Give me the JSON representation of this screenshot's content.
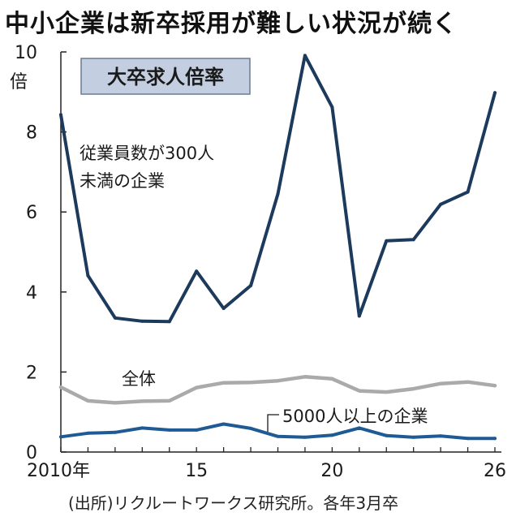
{
  "title": "中小企業は新卒採用が難しい状況が続く",
  "source": "(出所)リクルートワークス研究所。各年3月卒",
  "chart_data": {
    "type": "line",
    "title": "大卒求人倍率",
    "y_unit": "倍",
    "x": [
      2010,
      2011,
      2012,
      2013,
      2014,
      2015,
      2016,
      2017,
      2018,
      2019,
      2020,
      2021,
      2022,
      2023,
      2024,
      2025,
      2026
    ],
    "xlim": [
      2010,
      2026
    ],
    "ylim": [
      0,
      10
    ],
    "x_ticks": [
      2010,
      2015,
      2020,
      2026
    ],
    "x_tick_labels": [
      "2010年",
      "15",
      "20",
      "26"
    ],
    "y_ticks": [
      0,
      2,
      4,
      6,
      8,
      10
    ],
    "y_tick_labels": [
      "0",
      "2",
      "4",
      "6",
      "8",
      "10"
    ],
    "grid": false,
    "series": [
      {
        "name": "従業員数が300人未満の企業",
        "label_lines": [
          "従業員数が300人",
          "未満の企業"
        ],
        "color": "#1c3a5c",
        "values": [
          8.43,
          4.41,
          3.35,
          3.27,
          3.26,
          4.52,
          3.59,
          4.16,
          6.45,
          9.91,
          8.62,
          3.4,
          5.28,
          5.31,
          6.19,
          6.5,
          8.98
        ]
      },
      {
        "name": "全体",
        "label_lines": [
          "全体"
        ],
        "color": "#aaaaaa",
        "values": [
          1.62,
          1.28,
          1.23,
          1.27,
          1.28,
          1.61,
          1.73,
          1.74,
          1.78,
          1.88,
          1.83,
          1.53,
          1.5,
          1.58,
          1.71,
          1.75,
          1.66
        ]
      },
      {
        "name": "5000人以上の企業",
        "label_lines": [
          "5000人以上の企業"
        ],
        "color": "#1e5b94",
        "values": [
          0.38,
          0.47,
          0.49,
          0.6,
          0.55,
          0.55,
          0.7,
          0.59,
          0.39,
          0.37,
          0.42,
          0.6,
          0.41,
          0.37,
          0.4,
          0.34,
          0.34
        ]
      }
    ]
  }
}
